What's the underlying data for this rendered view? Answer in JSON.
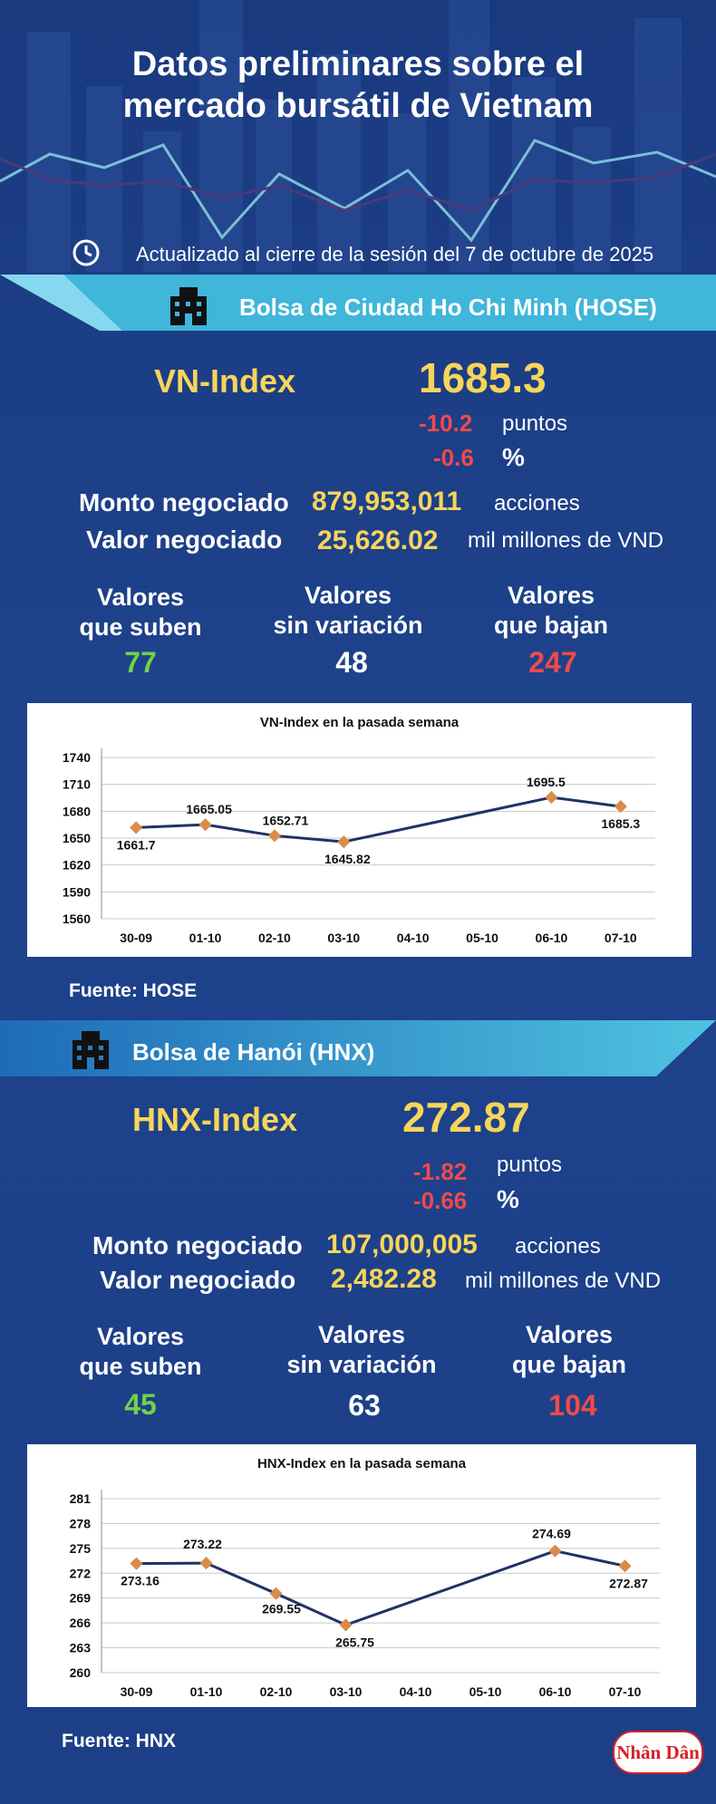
{
  "title_line1": "Datos preliminares sobre el",
  "title_line2": "mercado bursátil de Vietnam",
  "updated": "Actualizado al cierre de la sesión del 7 de octubre de 2025",
  "hose": {
    "band": "Bolsa de Ciudad Ho Chi Minh (HOSE)",
    "index_name": "VN-Index",
    "index_value": "1685.3",
    "change_points": "-10.2",
    "points_label": "puntos",
    "change_pct": "-0.6",
    "pct_label": "%",
    "volume_label": "Monto negociado",
    "volume_value": "879,953,011",
    "volume_unit": "acciones",
    "value_label": "Valor negociado",
    "value_value": "25,626.02",
    "value_unit": "mil millones de VND",
    "up_label_1": "Valores",
    "up_label_2": "que suben",
    "up_value": "77",
    "flat_label_1": "Valores",
    "flat_label_2": "sin variación",
    "flat_value": "48",
    "down_label_1": "Valores",
    "down_label_2": "que bajan",
    "down_value": "247",
    "source": "Fuente: HOSE"
  },
  "hnx": {
    "band": "Bolsa de Hanói (HNX)",
    "index_name": "HNX-Index",
    "index_value": "272.87",
    "change_points": "-1.82",
    "points_label": "puntos",
    "change_pct": "-0.66",
    "pct_label": "%",
    "volume_label": "Monto negociado",
    "volume_value": "107,000,005",
    "volume_unit": "acciones",
    "value_label": "Valor negociado",
    "value_value": "2,482.28",
    "value_unit": "mil millones de VND",
    "up_label_1": "Valores",
    "up_label_2": "que suben",
    "up_value": "45",
    "flat_label_1": "Valores",
    "flat_label_2": "sin variación",
    "flat_value": "63",
    "down_label_1": "Valores",
    "down_label_2": "que bajan",
    "down_value": "104",
    "source": "Fuente:  HNX"
  },
  "logo_text": "Nhân Dân",
  "colors": {
    "accent_yellow": "#f7d55a",
    "negative_red": "#f04a4a",
    "positive_green": "#6fd24a",
    "band_cyan": "#4fc3e0",
    "line_navy": "#1f3264",
    "marker_orange": "#d98c4a"
  },
  "icons": {
    "clock": "clock-icon",
    "building": "building-icon"
  },
  "chart_data": [
    {
      "type": "line",
      "title": "VN-Index en la pasada semana",
      "categories": [
        "30-09",
        "01-10",
        "02-10",
        "03-10",
        "04-10",
        "05-10",
        "06-10",
        "07-10"
      ],
      "series": [
        {
          "values": [
            1661.7,
            1665.05,
            1652.71,
            1645.82,
            null,
            null,
            1695.5,
            1685.3
          ]
        }
      ],
      "data_labels": [
        "1661.7",
        "1665.05",
        "1652.71",
        "1645.82",
        "",
        "",
        "1695.5",
        "1685.3"
      ],
      "yticks": [
        "1740",
        "1710",
        "1680",
        "1650",
        "1620",
        "1590",
        "1560"
      ],
      "ylim": [
        1560,
        1740
      ],
      "grid": true
    },
    {
      "type": "line",
      "title": "HNX-Index en la pasada semana",
      "categories": [
        "30-09",
        "01-10",
        "02-10",
        "03-10",
        "04-10",
        "05-10",
        "06-10",
        "07-10"
      ],
      "series": [
        {
          "values": [
            273.16,
            273.22,
            269.55,
            265.75,
            null,
            null,
            274.69,
            272.87
          ]
        }
      ],
      "data_labels": [
        "273.16",
        "273.22",
        "269.55",
        "265.75",
        "",
        "",
        "274.69",
        "272.87"
      ],
      "yticks": [
        "281",
        "278",
        "275",
        "272",
        "269",
        "266",
        "263",
        "260"
      ],
      "ylim": [
        260,
        281
      ],
      "grid": true
    }
  ]
}
